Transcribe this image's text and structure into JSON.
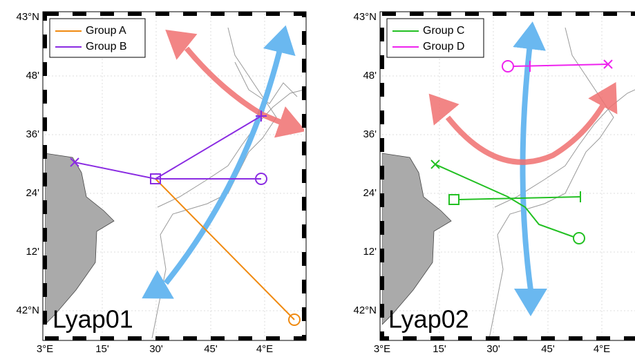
{
  "panels": [
    {
      "label": "Lyap01",
      "legend": [
        "Group A",
        "Group B"
      ],
      "y_labels": [
        "43°N",
        "48'",
        "36'",
        "24'",
        "12'",
        "42°N"
      ],
      "x_labels": [
        "3°E",
        "15'",
        "30'",
        "45'",
        "4°E"
      ]
    },
    {
      "label": "Lyap02",
      "legend": [
        "Group C",
        "Group D"
      ],
      "y_labels": [
        "43°N",
        "48'",
        "36'",
        "24'",
        "12'",
        "42°N"
      ],
      "x_labels": [
        "3°E",
        "15'",
        "30'",
        "45'",
        "4°E"
      ]
    }
  ]
}
